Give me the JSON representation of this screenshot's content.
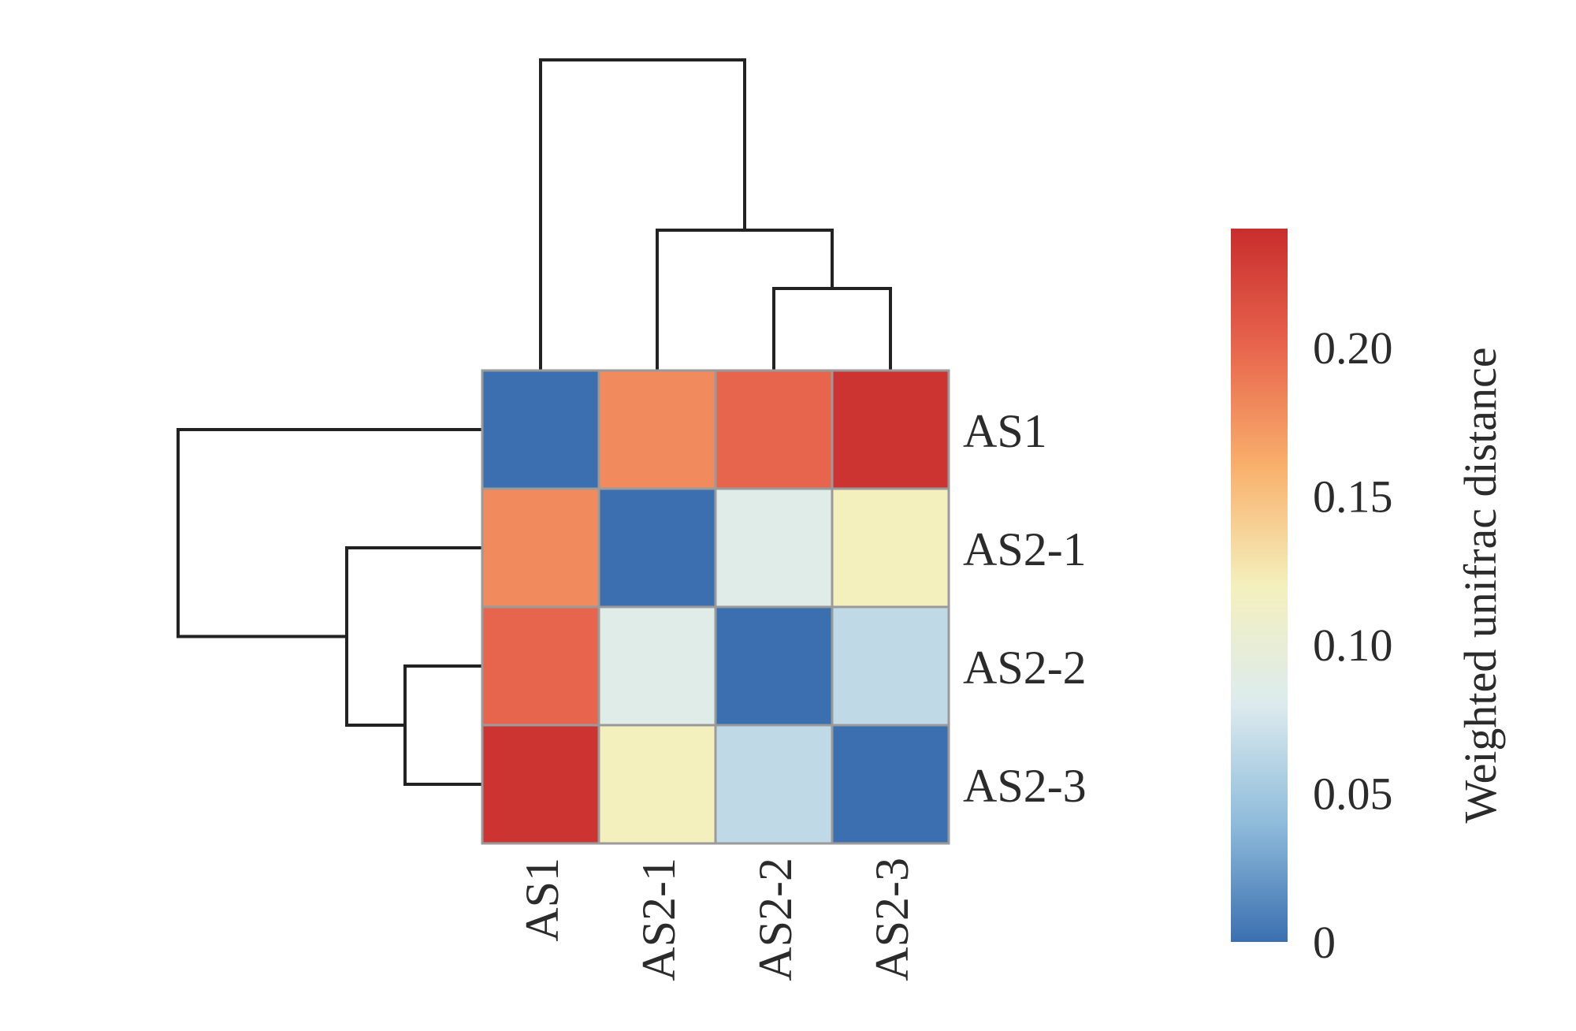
{
  "chart_data": {
    "type": "heatmap",
    "title": "",
    "rows": [
      "AS1",
      "AS2-1",
      "AS2-2",
      "AS2-3"
    ],
    "columns": [
      "AS1",
      "AS2-1",
      "AS2-2",
      "AS2-3"
    ],
    "values": [
      [
        0.0,
        0.18,
        0.2,
        0.235
      ],
      [
        0.18,
        0.0,
        0.085,
        0.12
      ],
      [
        0.2,
        0.085,
        0.0,
        0.065
      ],
      [
        0.235,
        0.12,
        0.065,
        0.0
      ]
    ],
    "colorbar": {
      "label": "Weighted unifrac distance",
      "range": [
        0,
        0.24
      ],
      "ticks": [
        0,
        0.05,
        0.1,
        0.15,
        0.2
      ],
      "tick_labels": [
        "0",
        "0.05",
        "0.10",
        "0.15",
        "0.20"
      ],
      "colormap": [
        "#3b6fb0",
        "#8fbcdb",
        "#dcebee",
        "#f4f0bd",
        "#f9b06c",
        "#e8654d",
        "#c82d2d"
      ]
    },
    "row_dendrogram": "((AS1),(AS2-1,(AS2-2,AS2-3)))",
    "column_dendrogram": "((AS1),(AS2-1,(AS2-2,AS2-3)))"
  }
}
